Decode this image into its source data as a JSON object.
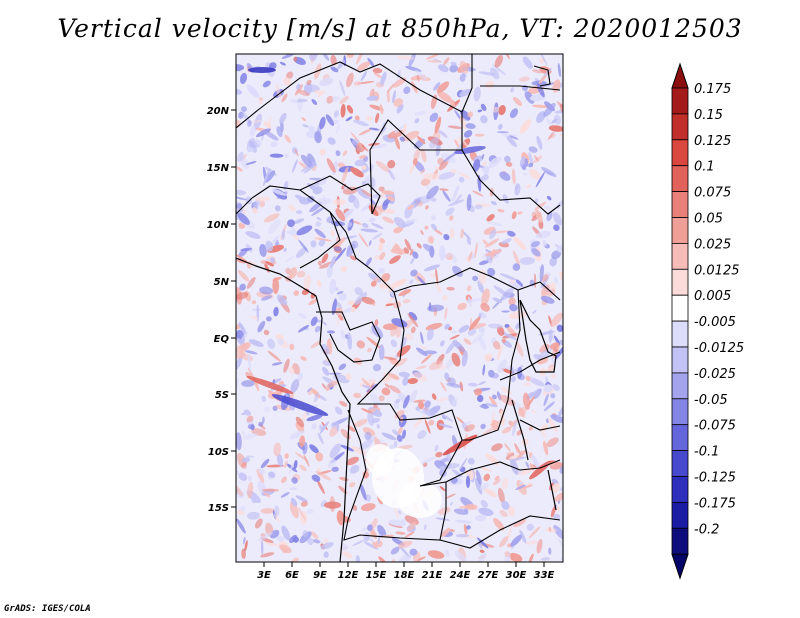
{
  "title": "Vertical velocity [m/s] at 850hPa, VT: 2020012503",
  "credit": "GrADS: IGES/COLA",
  "map": {
    "lat_labels": [
      "20N",
      "15N",
      "10N",
      "5N",
      "EQ",
      "5S",
      "10S",
      "15S"
    ],
    "lon_labels": [
      "3E",
      "6E",
      "9E",
      "12E",
      "15E",
      "18E",
      "21E",
      "24E",
      "27E",
      "30E",
      "33E"
    ]
  },
  "colorbar": {
    "labels": [
      "0.175",
      "0.15",
      "0.125",
      "0.1",
      "0.075",
      "0.05",
      "0.025",
      "0.0125",
      "0.005",
      "-0.005",
      "-0.0125",
      "-0.025",
      "-0.05",
      "-0.075",
      "-0.1",
      "-0.125",
      "-0.175",
      "-0.2"
    ],
    "colors": [
      "#a51b1b",
      "#c12f2a",
      "#d9473f",
      "#e0625a",
      "#e8807a",
      "#f09e98",
      "#f6bcb8",
      "#fbdcda",
      "#ffffff",
      "#dcdcfb",
      "#c2c2f5",
      "#a3a3ee",
      "#8585e6",
      "#6666dc",
      "#4949cf",
      "#2f2fbd",
      "#1b1ba4",
      "#0d0d7c"
    ],
    "top_arrow_color": "#8b0f0f",
    "bottom_arrow_color": "#06066a"
  }
}
